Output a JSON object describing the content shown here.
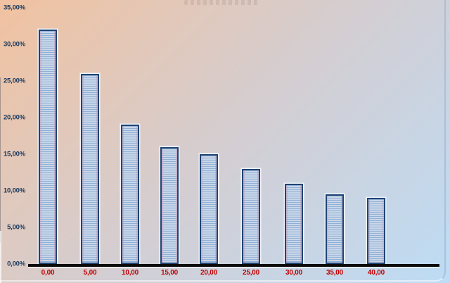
{
  "chart_data": {
    "type": "bar",
    "title": "",
    "xlabel": "",
    "ylabel": "",
    "categories": [
      "0,00",
      "5,00",
      "10,00",
      "15,00",
      "20,00",
      "25,00",
      "30,00",
      "35,00",
      "40,00"
    ],
    "values": [
      32,
      26,
      19,
      16,
      15,
      13,
      11,
      9.5,
      9
    ],
    "value_unit": "%",
    "ylim": [
      0,
      35
    ],
    "ytick_values": [
      0,
      5,
      10,
      15,
      20,
      25,
      30,
      35
    ],
    "ytick_labels": [
      "0,00%",
      "5,00%",
      "10,00%",
      "15,00%",
      "20,00%",
      "25,00%",
      "30,00%",
      "35,00%"
    ],
    "grid": false,
    "legend_position": "none",
    "number_format": "comma-decimal",
    "bar_fill_pattern": "horizontal-stripes"
  },
  "colors": {
    "bg_top_left": "#f1c2a0",
    "bg_middle": "#d3ced3",
    "bg_bottom_right": "#bddcf5",
    "bar_fill": "#c8d6e8",
    "bar_stripe": "#8fb0d6",
    "bar_border": "#1f4472",
    "bar_halo": "#eef4fb",
    "axis_line": "#0a0a0a",
    "ytick_color": "#17375d",
    "xtick_color": "#c00000"
  }
}
